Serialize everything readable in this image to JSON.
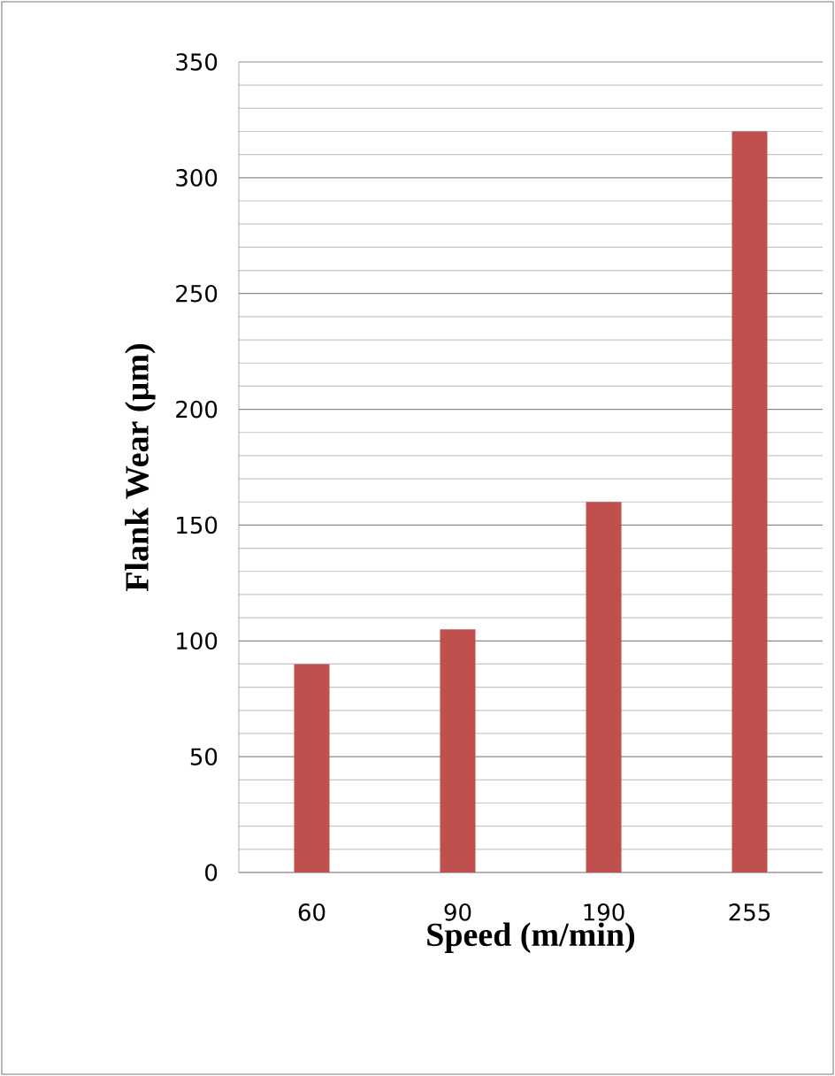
{
  "chart_data": {
    "type": "bar",
    "xlabel": "Speed (m/min)",
    "ylabel": "Flank Wear (µm)",
    "categories": [
      "60",
      "90",
      "190",
      "255"
    ],
    "values": [
      90,
      105,
      160,
      320
    ],
    "color": "#c0504d",
    "ylim": [
      0,
      350
    ],
    "yticks": [
      0,
      50,
      100,
      150,
      200,
      250,
      300,
      350
    ],
    "grid": "y"
  }
}
